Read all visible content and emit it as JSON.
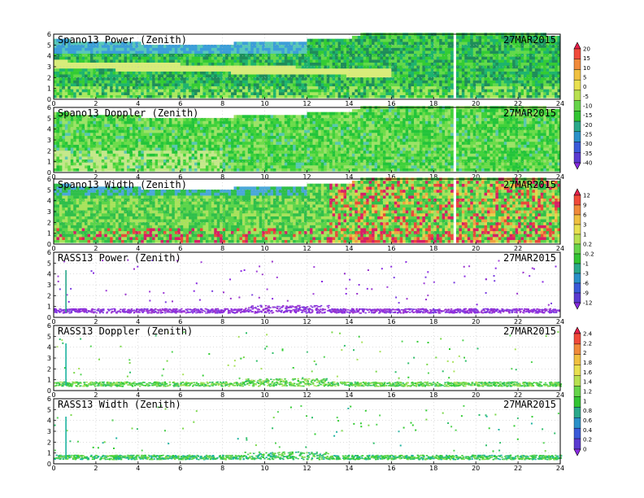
{
  "chart_data": [
    {
      "type": "heatmap",
      "title": "Spano13 Power (Zenith)",
      "date": "27MAR2015",
      "xlim": [
        0,
        24
      ],
      "ylim": [
        0,
        6
      ],
      "xticks": [
        0,
        2,
        4,
        6,
        8,
        10,
        12,
        14,
        16,
        18,
        20,
        22,
        24
      ],
      "yticks": [
        0,
        1,
        2,
        3,
        4,
        5,
        6
      ],
      "colorbar": "power",
      "palette": [
        "#1e8c5a",
        "#1db46e",
        "#33cc33",
        "#62d94a",
        "#a9e860",
        "#d8ec7a",
        "#57c8b8",
        "#3b9ed8"
      ]
    },
    {
      "type": "heatmap",
      "title": "Spano13 Doppler (Zenith)",
      "date": "27MAR2015",
      "xlim": [
        0,
        24
      ],
      "ylim": [
        0,
        6
      ],
      "xticks": [
        0,
        2,
        4,
        6,
        8,
        10,
        12,
        14,
        16,
        18,
        20,
        22,
        24
      ],
      "yticks": [
        0,
        1,
        2,
        3,
        4,
        5,
        6
      ],
      "colorbar": "power",
      "palette": [
        "#22c43a",
        "#3fd13a",
        "#6cdb4a",
        "#9be266",
        "#c4e88a",
        "#58c7b0"
      ]
    },
    {
      "type": "heatmap",
      "title": "Spano13 Width (Zenith)",
      "date": "27MAR2015",
      "xlim": [
        0,
        24
      ],
      "ylim": [
        0,
        6
      ],
      "xticks": [
        0,
        2,
        4,
        6,
        8,
        10,
        12,
        14,
        16,
        18,
        20,
        22,
        24
      ],
      "yticks": [
        0,
        1,
        2,
        3,
        4,
        5,
        6
      ],
      "colorbar": "width",
      "palette": [
        "#2fbf4a",
        "#5bd44a",
        "#a8e25c",
        "#e6d24a",
        "#f0a040",
        "#e84a3a",
        "#d62066",
        "#4aa8d8"
      ]
    },
    {
      "type": "scatter",
      "title": "RASS13 Power (Zenith)",
      "date": "27MAR2015",
      "xlim": [
        0,
        24
      ],
      "ylim": [
        0,
        6
      ],
      "xticks": [
        0,
        2,
        4,
        6,
        8,
        10,
        12,
        14,
        16,
        18,
        20,
        22,
        24
      ],
      "yticks": [
        0,
        1,
        2,
        3,
        4,
        5,
        6
      ],
      "colorbar": "width",
      "palette": [
        "#8a2be2",
        "#9932cc",
        "#7b3fe0",
        "#a040d8"
      ]
    },
    {
      "type": "scatter",
      "title": "RASS13 Doppler (Zenith)",
      "date": "27MAR2015",
      "xlim": [
        0,
        24
      ],
      "ylim": [
        0,
        6
      ],
      "xticks": [
        0,
        2,
        4,
        6,
        8,
        10,
        12,
        14,
        16,
        18,
        20,
        22,
        24
      ],
      "yticks": [
        0,
        1,
        2,
        3,
        4,
        5,
        6
      ],
      "colorbar": "rass",
      "palette": [
        "#33cc33",
        "#55d455",
        "#7ad84a",
        "#2fbf6a",
        "#a8e25c"
      ]
    },
    {
      "type": "scatter",
      "title": "RASS13 Width (Zenith)",
      "date": "27MAR2015",
      "xlim": [
        0,
        24
      ],
      "ylim": [
        0,
        6
      ],
      "xticks": [
        0,
        2,
        4,
        6,
        8,
        10,
        12,
        14,
        16,
        18,
        20,
        22,
        24
      ],
      "yticks": [
        0,
        1,
        2,
        3,
        4,
        5,
        6
      ],
      "colorbar": "rass",
      "palette": [
        "#33cc33",
        "#2fbf6a",
        "#1db4a0",
        "#55d455",
        "#7ad84a"
      ]
    }
  ],
  "colorbars": {
    "power": {
      "labels": [
        "20",
        "15",
        "10",
        "5",
        "0",
        "-5",
        "-10",
        "-15",
        "-20",
        "-25",
        "-30",
        "-35",
        "-40"
      ],
      "colors": [
        "#e8204a",
        "#f04a3a",
        "#f08a3a",
        "#f0c040",
        "#e8e050",
        "#b8e050",
        "#66d44a",
        "#33c433",
        "#2aa88a",
        "#2a90c8",
        "#3a5ad8",
        "#5a3ad0",
        "#8a2be2"
      ]
    },
    "width": {
      "labels": [
        "12",
        "9",
        "6",
        "3",
        "1",
        "0.2",
        "-0.2",
        "-1",
        "-3",
        "-6",
        "-9",
        "-12"
      ],
      "colors": [
        "#e8204a",
        "#f04a3a",
        "#f08a3a",
        "#f0c040",
        "#e8e050",
        "#b8e050",
        "#66d44a",
        "#33c433",
        "#2aa88a",
        "#2a90c8",
        "#3a5ad8",
        "#5a3ad0",
        "#8a2be2"
      ]
    },
    "rass": {
      "labels": [
        "2.4",
        "2.2",
        "2",
        "1.8",
        "1.6",
        "1.4",
        "1.2",
        "1",
        "0.8",
        "0.6",
        "0.4",
        "0.2",
        "0"
      ],
      "colors": [
        "#e8204a",
        "#f04a3a",
        "#f08a3a",
        "#f0c040",
        "#e8e050",
        "#b8e050",
        "#66d44a",
        "#33c433",
        "#2aa88a",
        "#2a90c8",
        "#3a5ad8",
        "#5a3ad0",
        "#8a2be2"
      ]
    }
  }
}
